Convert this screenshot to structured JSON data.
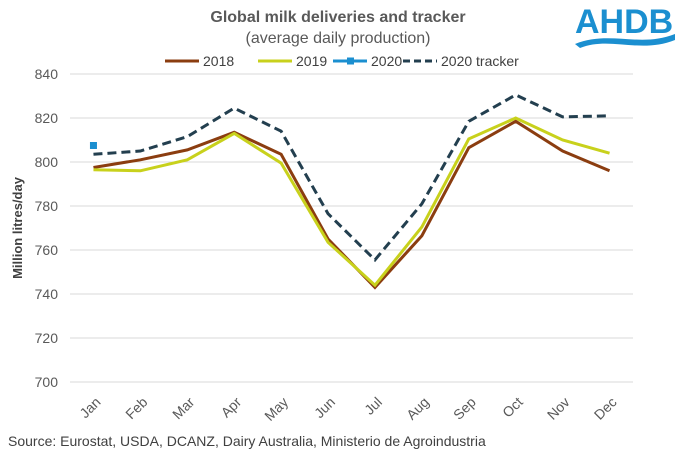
{
  "logo": {
    "text": "AHDB",
    "color": "#1b8fd0"
  },
  "source": "Source: Eurostat, USDA, DCANZ, Dairy Australia, Ministerio de Agroindustria",
  "chart_data": {
    "type": "line",
    "title": "Global milk deliveries and tracker",
    "subtitle": "(average daily production)",
    "xlabel": "",
    "ylabel": "Million litres/day",
    "categories": [
      "Jan",
      "Feb",
      "Mar",
      "Apr",
      "May",
      "Jun",
      "Jul",
      "Aug",
      "Sep",
      "Oct",
      "Nov",
      "Dec"
    ],
    "ylim": [
      700,
      840
    ],
    "yticks": [
      700,
      720,
      740,
      760,
      780,
      800,
      820,
      840
    ],
    "grid": true,
    "legend_position": "top",
    "series": [
      {
        "name": "2018",
        "color": "#8b3d10",
        "style": "solid",
        "marker": false,
        "values": [
          797.5,
          801,
          805.5,
          813.5,
          803.5,
          765,
          743,
          766.5,
          806.5,
          818.5,
          805,
          796
        ]
      },
      {
        "name": "2019",
        "color": "#c8d11c",
        "style": "solid",
        "marker": false,
        "values": [
          796.5,
          796,
          801,
          813,
          799.5,
          763.5,
          744,
          770.5,
          810.5,
          820,
          810,
          804
        ]
      },
      {
        "name": "2020",
        "color": "#1b8fd0",
        "style": "solid",
        "marker": true,
        "values": [
          807.5,
          null,
          null,
          null,
          null,
          null,
          null,
          null,
          null,
          null,
          null,
          null
        ]
      },
      {
        "name": "2020 tracker",
        "color": "#233f4f",
        "style": "dashed",
        "marker": false,
        "values": [
          803.5,
          805,
          811.5,
          824.5,
          814,
          776.5,
          755.5,
          781,
          818.5,
          830.5,
          820.5,
          821
        ]
      }
    ]
  }
}
